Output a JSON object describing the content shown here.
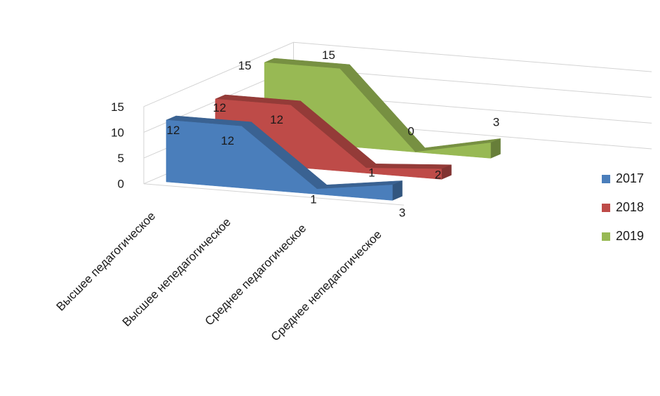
{
  "chart_data": {
    "type": "area",
    "subtype": "3d-area",
    "categories": [
      "Высшее педагогическое",
      "Высшее непедагогическое",
      "Среднее педагогическое",
      "Среднее непедагогическое"
    ],
    "series": [
      {
        "name": "2017",
        "values": [
          12,
          12,
          1,
          3
        ],
        "color": "#4a7ebb"
      },
      {
        "name": "2018",
        "values": [
          12,
          12,
          1,
          2
        ],
        "color": "#be4b48"
      },
      {
        "name": "2019",
        "values": [
          15,
          15,
          0,
          3
        ],
        "color": "#98b954"
      }
    ],
    "data_label_text": [
      [
        "12",
        "12",
        "1",
        "3"
      ],
      [
        "12",
        "12",
        "1",
        "2"
      ],
      [
        "15",
        "15",
        "0",
        "3"
      ]
    ],
    "y_ticks": [
      "0",
      "5",
      "10",
      "15"
    ],
    "ylim": [
      0,
      15
    ],
    "grid": true,
    "legend_position": "right"
  }
}
